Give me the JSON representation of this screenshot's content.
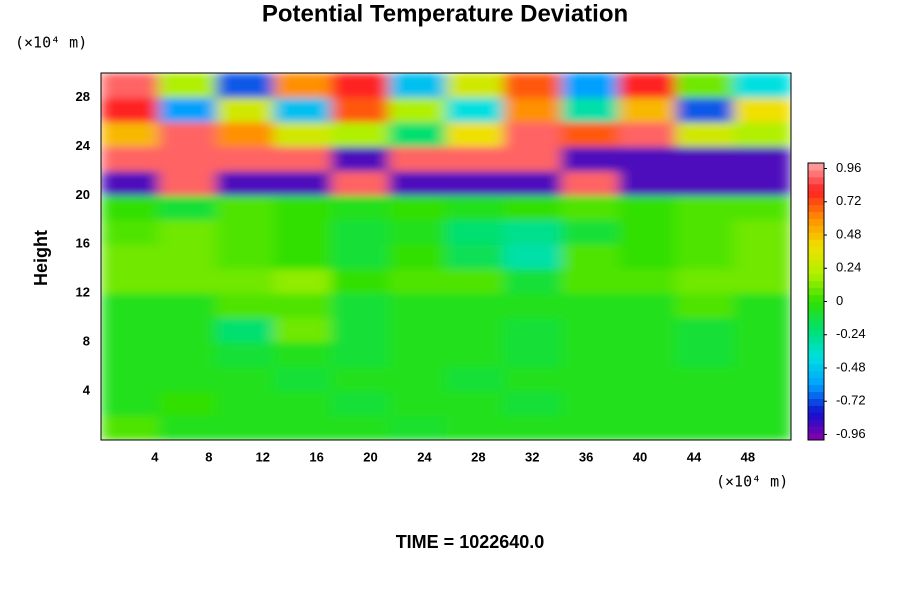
{
  "chart_data": {
    "type": "heatmap",
    "title": "Potential Temperature Deviation",
    "y_label": "Height",
    "y_unit": "(×10⁴ m)",
    "x_unit": "(×10⁴ m)",
    "footer": "TIME = 1022640.0",
    "xlim": [
      0,
      51.2
    ],
    "ylim": [
      0,
      30
    ],
    "xticks": [
      4,
      8,
      12,
      16,
      20,
      24,
      28,
      32,
      36,
      40,
      44,
      48
    ],
    "yticks": [
      4,
      8,
      12,
      16,
      20,
      24,
      28
    ],
    "colormap": [
      "#8b00a8",
      "#1010d0",
      "#00a0ff",
      "#00e0e0",
      "#00e070",
      "#30e000",
      "#b0f000",
      "#f0e000",
      "#ff9000",
      "#ff2020",
      "#ffa8a8"
    ],
    "clim": [
      -1,
      1
    ],
    "colorbar_ticks": [
      0.96,
      0.72,
      0.48,
      0.24,
      0,
      -0.24,
      -0.48,
      -0.72,
      -0.96
    ],
    "z": [
      [
        0.05,
        -0.05,
        -0.05,
        -0.05,
        -0.05,
        -0.08,
        -0.05,
        -0.05,
        -0.05,
        -0.05,
        -0.05,
        -0.05
      ],
      [
        -0.05,
        0,
        -0.05,
        -0.05,
        -0.1,
        -0.05,
        -0.05,
        -0.1,
        -0.05,
        -0.05,
        -0.05,
        -0.05
      ],
      [
        -0.05,
        -0.05,
        -0.05,
        -0.1,
        -0.05,
        -0.05,
        -0.1,
        -0.05,
        -0.05,
        -0.05,
        -0.05,
        -0.05
      ],
      [
        -0.05,
        -0.05,
        -0.1,
        -0.05,
        -0.1,
        -0.05,
        -0.05,
        -0.1,
        -0.05,
        -0.05,
        -0.1,
        -0.05
      ],
      [
        -0.05,
        -0.05,
        -0.2,
        0.1,
        -0.1,
        -0.05,
        -0.05,
        -0.1,
        -0.05,
        -0.05,
        -0.1,
        -0.05
      ],
      [
        -0.05,
        -0.05,
        0.05,
        0.05,
        -0.1,
        -0.05,
        -0.05,
        -0.05,
        -0.05,
        -0.05,
        0.05,
        -0.05
      ],
      [
        0.1,
        0.1,
        0.1,
        0.15,
        0,
        0.05,
        0.05,
        -0.1,
        0.05,
        0.05,
        0.1,
        0.1
      ],
      [
        0.1,
        0.1,
        0.05,
        0,
        -0.1,
        0,
        -0.15,
        -0.3,
        0.05,
        0,
        0.05,
        0.1
      ],
      [
        0.05,
        0.1,
        0.05,
        0,
        -0.1,
        -0.05,
        -0.2,
        -0.25,
        -0.1,
        0,
        0.05,
        0.1
      ],
      [
        0,
        -0.1,
        0.05,
        0,
        -0.05,
        0,
        -0.05,
        0,
        0.05,
        0,
        0.05,
        0.05
      ],
      [
        -0.9,
        0.9,
        -0.9,
        -0.9,
        0.9,
        -0.9,
        -0.9,
        -0.9,
        0.9,
        -0.9,
        -0.9,
        -0.9
      ],
      [
        0.9,
        0.9,
        0.9,
        0.9,
        -0.9,
        0.9,
        0.9,
        0.9,
        -0.9,
        -0.9,
        -0.9,
        -0.9
      ],
      [
        0.5,
        0.9,
        0.6,
        0.3,
        0.2,
        -0.2,
        0.4,
        0.9,
        0.7,
        0.9,
        0.3,
        0.2
      ],
      [
        0.8,
        -0.6,
        0.3,
        -0.5,
        0.7,
        0.2,
        -0.4,
        0.6,
        -0.3,
        0.5,
        -0.7,
        0.4
      ],
      [
        0.9,
        0.2,
        -0.7,
        0.6,
        0.8,
        -0.5,
        0.3,
        0.7,
        -0.6,
        0.8,
        0.1,
        -0.4
      ]
    ]
  }
}
